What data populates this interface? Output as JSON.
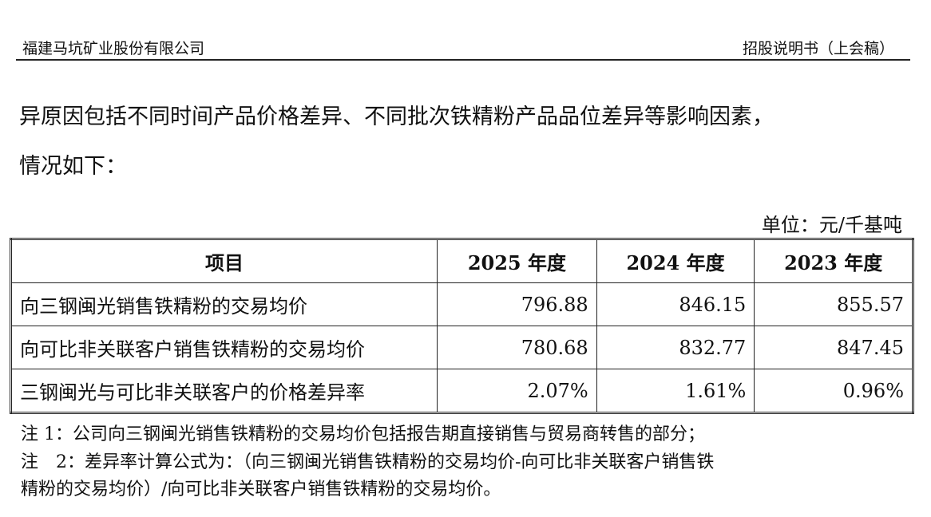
{
  "header": {
    "company": "福建马坑矿业股份有限公司",
    "doc": "招股说明书（上会稿）"
  },
  "paragraph": [
    "异原因包括不同时间产品价格差异、不同批次铁精粉产品品位差异等影响因素，",
    "情况如下："
  ],
  "unit": "单位：元/千基吨",
  "table": {
    "header": [
      "项目",
      "2025 年度",
      "2024 年度",
      "2023 年度"
    ],
    "rows": [
      [
        "向三钢闽光销售铁精粉的交易均价",
        "796.88",
        "846.15",
        "855.57"
      ],
      [
        "向可比非关联客户销售铁精粉的交易均价",
        "780.68",
        "832.77",
        "847.45"
      ],
      [
        "三钢闽光与可比非关联客户的价格差异率",
        "2.07%",
        "1.61%",
        "0.96%"
      ]
    ]
  },
  "notes": [
    "注 1：公司向三钢闽光销售铁精粉的交易均价包括报告期直接销售与贸易商转售的部分；",
    "注　2：差异率计算公式为：（向三钢闽光销售铁精粉的交易均价-向可比非关联客户销售铁",
    "精粉的交易均价）/向可比非关联客户销售铁精粉的交易均价。"
  ]
}
